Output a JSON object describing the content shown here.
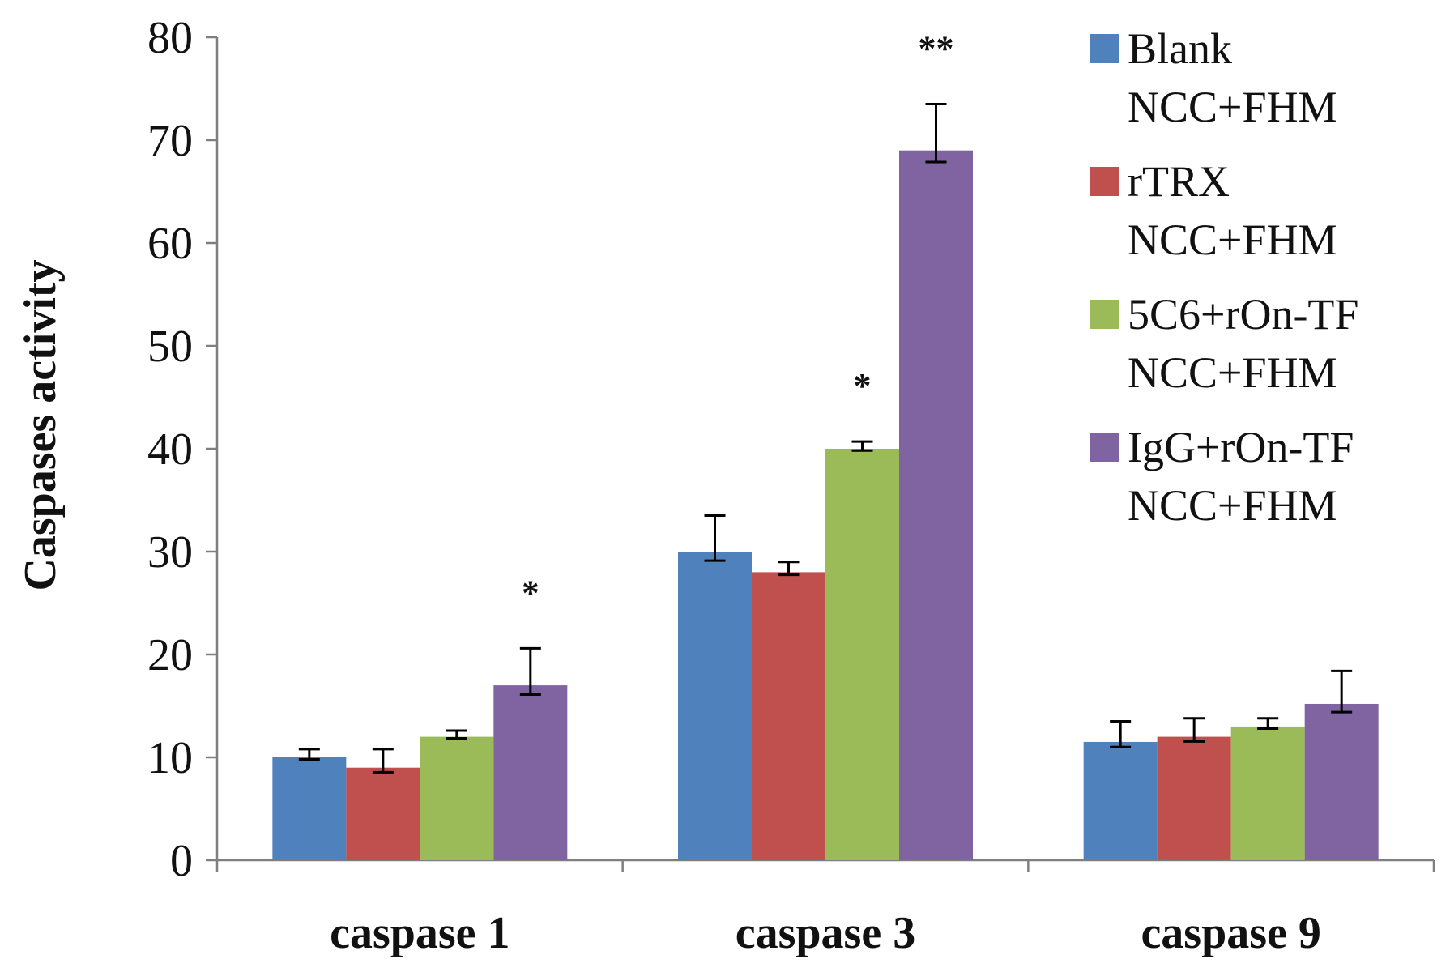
{
  "chart_data": {
    "type": "bar",
    "title": "",
    "xlabel": "",
    "ylabel": "Caspases activity",
    "ylim": [
      0,
      80
    ],
    "yticks": [
      0,
      10,
      20,
      30,
      40,
      50,
      60,
      70,
      80
    ],
    "grid": false,
    "legend_position": "top-right",
    "categories": [
      "caspase 1",
      "caspase 3",
      "caspase 9"
    ],
    "series": [
      {
        "name": "Blank",
        "name_line2": "NCC+FHM",
        "color": "#4F81BD",
        "values": [
          10,
          30,
          11.5
        ],
        "errors": [
          0.8,
          3.5,
          2.0
        ],
        "significance": [
          "",
          "",
          ""
        ]
      },
      {
        "name": "rTRX",
        "name_line2": "NCC+FHM",
        "color": "#C0504D",
        "values": [
          9,
          28,
          12
        ],
        "errors": [
          1.8,
          1.0,
          1.8
        ],
        "significance": [
          "",
          "",
          ""
        ]
      },
      {
        "name": "5C6+rOn-TF",
        "name_line2": "NCC+FHM",
        "color": "#9BBB59",
        "values": [
          12,
          40,
          13
        ],
        "errors": [
          0.6,
          0.7,
          0.8
        ],
        "significance": [
          "",
          "*",
          ""
        ]
      },
      {
        "name": "IgG+rOn-TF",
        "name_line2": "NCC+FHM",
        "color": "#8064A2",
        "values": [
          17,
          69,
          15.2
        ],
        "errors": [
          3.6,
          4.5,
          3.2
        ],
        "significance": [
          "*",
          "**",
          ""
        ]
      }
    ]
  }
}
